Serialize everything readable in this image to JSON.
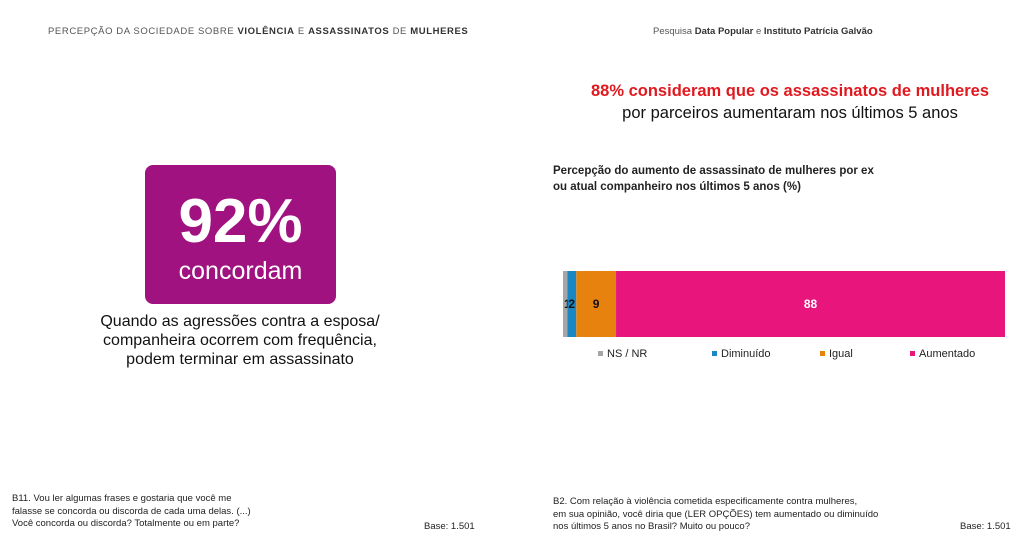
{
  "left": {
    "header": {
      "part1": "PERCEPÇÃO DA SOCIEDADE SOBRE ",
      "b1": "VIOLÊNCIA",
      "part2": " E ",
      "b2": "ASSASSINATOS",
      "part3": " DE ",
      "b3": "MULHERES"
    },
    "badge": {
      "percent": "92%",
      "label": "concordam",
      "color": "#a0127f"
    },
    "quote": [
      "Quando as agressões contra a esposa/",
      "companheira ocorrem com frequência,",
      "podem terminar em assassinato"
    ],
    "note": [
      "B11. Vou ler algumas frases e gostaria que você me",
      "falasse se concorda ou discorda de cada uma delas. (...)",
      "Você concorda ou discorda? Totalmente ou em parte?"
    ],
    "base": "Base: 1.501"
  },
  "right": {
    "header": {
      "prefix": "Pesquisa ",
      "b1": "Data Popular",
      "mid": " e ",
      "b2": "Instituto Patrícia Galvão"
    },
    "headline": {
      "red": "88% consideram que os assassinatos de mulheres",
      "rest": "por parceiros aumentaram nos últimos 5 anos"
    },
    "note": [
      "B2. Com relação à violência cometida especificamente contra mulheres,",
      "em sua opinião, você diria que (LER OPÇÕES) tem aumentado ou diminuído",
      "nos últimos 5 anos no Brasil? Muito ou pouco?"
    ],
    "base": "Base: 1.501"
  },
  "chart_data": {
    "type": "bar",
    "orientation": "horizontal-stacked",
    "title": [
      "Percepção do aumento de assassinato de mulheres por ex",
      "ou atual companheiro nos últimos 5 anos (%)"
    ],
    "series": [
      {
        "name": "NS / NR",
        "value": 1,
        "color": "#a6a6a6"
      },
      {
        "name": "Diminuído",
        "value": 2,
        "color": "#1a87c4"
      },
      {
        "name": "Igual",
        "value": 9,
        "color": "#e8820e"
      },
      {
        "name": "Aumentado",
        "value": 88,
        "color": "#e8157d"
      }
    ],
    "total": 100,
    "legend_position": "bottom"
  }
}
